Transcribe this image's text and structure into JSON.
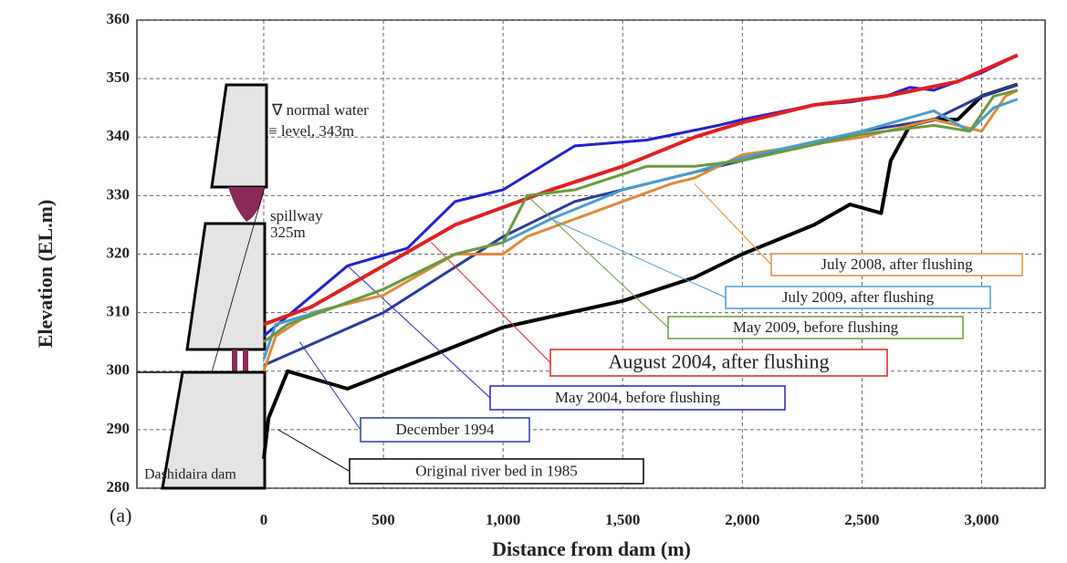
{
  "chart_data": {
    "type": "line",
    "x_label": "Distance from dam (m)",
    "y_label": "Elevation (EL.m)",
    "xlim": [
      -530,
      3265
    ],
    "ylim": [
      280,
      360
    ],
    "xticks": [
      0,
      500,
      {
        "value": 1000,
        "label": "1,000"
      },
      {
        "value": 1500,
        "label": "1,500"
      },
      {
        "value": 2000,
        "label": "2,000"
      },
      {
        "value": 2500,
        "label": "2,500"
      },
      {
        "value": 3000,
        "label": "3,000"
      }
    ],
    "yticks": [
      280,
      290,
      300,
      310,
      320,
      330,
      340,
      350,
      360
    ],
    "grid": true,
    "annotations": {
      "panel": "(a)",
      "water1": "∇ normal water",
      "water2": "≡ level, 343m",
      "spill1": "spillway",
      "spill2": "325m",
      "dam": "Dashidaira dam"
    },
    "series": [
      {
        "name": "Original river bed in 1985",
        "color": "#000000",
        "x": [
          0,
          20,
          100,
          350,
          600,
          1000,
          1500,
          1800,
          2000,
          2300,
          2450,
          2580,
          2620,
          2700,
          2800,
          2900,
          3000,
          3150
        ],
        "values": [
          285,
          292,
          300,
          297,
          301,
          307.5,
          312,
          316,
          320,
          325,
          328.5,
          327,
          336,
          342,
          343,
          343,
          347,
          349
        ]
      },
      {
        "name": "December 1994",
        "color": "#2a3c9a",
        "x": [
          0,
          500,
          1000,
          1300,
          1700,
          2000,
          2500,
          2800,
          3000,
          3150
        ],
        "values": [
          301,
          310,
          323,
          329,
          333,
          336,
          341,
          343,
          347,
          349
        ]
      },
      {
        "name": "May 2004, before flushing",
        "color": "#2222cc",
        "x": [
          0,
          350,
          600,
          800,
          1000,
          1300,
          1600,
          1900,
          2000,
          2300,
          2450,
          2600,
          2700,
          2800,
          3000,
          3150
        ],
        "values": [
          306,
          318,
          321,
          329,
          331,
          338.5,
          339.5,
          342,
          343,
          345.5,
          346,
          347,
          348.5,
          348,
          351,
          354
        ]
      },
      {
        "name": "August 2004, after flushing",
        "color": "#e02020",
        "x": [
          0,
          200,
          500,
          800,
          1200,
          1500,
          1800,
          2000,
          2300,
          2600,
          2900,
          3150
        ],
        "values": [
          308,
          311,
          318,
          325,
          331,
          335,
          340,
          342.5,
          345.5,
          347,
          349.5,
          354
        ]
      },
      {
        "name": "July 2008, after flushing",
        "color": "#e08a3a",
        "x": [
          0,
          50,
          200,
          500,
          800,
          1000,
          1100,
          1300,
          1500,
          1700,
          1800,
          1900,
          2000,
          2500,
          2800,
          3000,
          3100,
          3150
        ],
        "values": [
          300,
          306,
          310,
          313,
          320,
          320,
          323,
          326,
          329,
          332,
          333,
          335,
          337,
          340,
          343,
          341,
          347,
          348
        ]
      },
      {
        "name": "July 2009, after flushing",
        "color": "#4a9ccc",
        "x": [
          0,
          50,
          300,
          500,
          800,
          1000,
          1200,
          1500,
          1800,
          2000,
          2500,
          2800,
          2950,
          3050,
          3150
        ],
        "values": [
          302,
          308,
          311,
          314,
          320,
          322,
          326,
          331,
          334,
          336.5,
          341,
          344.5,
          341,
          345,
          346.5
        ]
      },
      {
        "name": "May 2009, before flushing",
        "color": "#6a9a3c",
        "x": [
          0,
          100,
          500,
          800,
          1000,
          1100,
          1300,
          1600,
          1800,
          2000,
          2500,
          2800,
          2950,
          3050,
          3150
        ],
        "values": [
          305,
          308,
          314,
          320,
          322,
          330,
          331,
          335,
          335,
          336,
          340.5,
          342,
          341,
          347,
          348
        ]
      }
    ]
  }
}
